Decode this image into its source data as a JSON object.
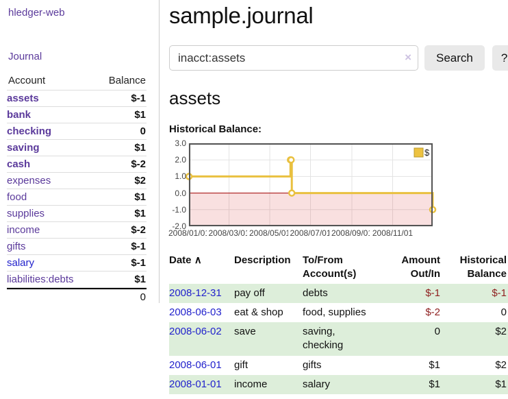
{
  "sidebar": {
    "brand": "hledger-web",
    "journal_label": "Journal",
    "accounts": {
      "header_account": "Account",
      "header_balance": "Balance",
      "rows": [
        {
          "account": "assets",
          "balance": "$-1",
          "level": 1,
          "strong": true,
          "unvisited": false
        },
        {
          "account": "bank",
          "balance": "$1",
          "level": 2,
          "strong": true,
          "unvisited": false
        },
        {
          "account": "checking",
          "balance": "0",
          "level": 3,
          "strong": true,
          "unvisited": false
        },
        {
          "account": "saving",
          "balance": "$1",
          "level": 3,
          "strong": true,
          "unvisited": false
        },
        {
          "account": "cash",
          "balance": "$-2",
          "level": 2,
          "strong": true,
          "unvisited": false
        },
        {
          "account": "expenses",
          "balance": "$2",
          "level": 1,
          "strong": false,
          "unvisited": false
        },
        {
          "account": "food",
          "balance": "$1",
          "level": 2,
          "strong": false,
          "unvisited": false
        },
        {
          "account": "supplies",
          "balance": "$1",
          "level": 2,
          "strong": false,
          "unvisited": false
        },
        {
          "account": "income",
          "balance": "$-2",
          "level": 1,
          "strong": false,
          "unvisited": false
        },
        {
          "account": "gifts",
          "balance": "$-1",
          "level": 2,
          "strong": false,
          "unvisited": false
        },
        {
          "account": "salary",
          "balance": "$-1",
          "level": 2,
          "strong": false,
          "unvisited": true
        },
        {
          "account": "liabilities:debts",
          "balance": "$1",
          "level": 1,
          "strong": false,
          "unvisited": false
        }
      ],
      "total": "0"
    }
  },
  "main": {
    "title": "sample.journal",
    "search": {
      "value": "inacct:assets",
      "clear_icon": "×",
      "button_label": "Search",
      "help_label": "?"
    },
    "account_heading": "assets",
    "chart_label": "Historical Balance:"
  },
  "chart_data": {
    "type": "line",
    "step": true,
    "title": "Historical Balance:",
    "legend": {
      "label": "$",
      "position": "top-right"
    },
    "series": [
      {
        "name": "$",
        "points": [
          [
            "2008-01-01",
            1
          ],
          [
            "2008-06-01",
            2
          ],
          [
            "2008-06-02",
            2
          ],
          [
            "2008-06-03",
            0
          ],
          [
            "2008-12-31",
            -1
          ]
        ]
      }
    ],
    "x_range": [
      "2008-01-01",
      "2008-12-31"
    ],
    "ylim": [
      -2,
      3
    ],
    "y_ticks": [
      {
        "label": "3.0",
        "value": 3
      },
      {
        "label": "2.0",
        "value": 2
      },
      {
        "label": "1.0",
        "value": 1
      },
      {
        "label": "0.0",
        "value": 0
      },
      {
        "label": "-1.0",
        "value": -1
      },
      {
        "label": "-2.0",
        "value": -2
      }
    ],
    "x_ticks": [
      {
        "label": "2008/01/01",
        "date": "2008-01-01"
      },
      {
        "label": "2008/03/01",
        "date": "2008-03-01"
      },
      {
        "label": "2008/05/01",
        "date": "2008-05-01"
      },
      {
        "label": "2008/07/01",
        "date": "2008-07-01"
      },
      {
        "label": "2008/09/01",
        "date": "2008-09-01"
      },
      {
        "label": "2008/11/01",
        "date": "2008-11-01"
      }
    ],
    "grid": true,
    "colors": {
      "line": "#e9c03f",
      "marker_fill": "#ffffff",
      "negative_region": "rgba(220,60,60,0.16)",
      "zero_line": "#a40000",
      "grid": "#e3e3e3",
      "border": "#545454",
      "legend_swatch": "#edc240"
    }
  },
  "register": {
    "sort_icon": "∧",
    "headers": [
      "Date",
      "Description",
      "To/From Account(s)",
      "Amount Out/In",
      "Historical Balance"
    ],
    "rows": [
      {
        "date": "2008-12-31",
        "description": "pay off",
        "accounts": "debts",
        "amount": "$-1",
        "balance": "$-1"
      },
      {
        "date": "2008-06-03",
        "description": "eat & shop",
        "accounts": "food, supplies",
        "amount": "$-2",
        "balance": "0"
      },
      {
        "date": "2008-06-02",
        "description": "save",
        "accounts": "saving, checking",
        "amount": "0",
        "balance": "$2"
      },
      {
        "date": "2008-06-01",
        "description": "gift",
        "accounts": "gifts",
        "amount": "$1",
        "balance": "$2"
      },
      {
        "date": "2008-01-01",
        "description": "income",
        "accounts": "salary",
        "amount": "$1",
        "balance": "$1"
      }
    ]
  }
}
